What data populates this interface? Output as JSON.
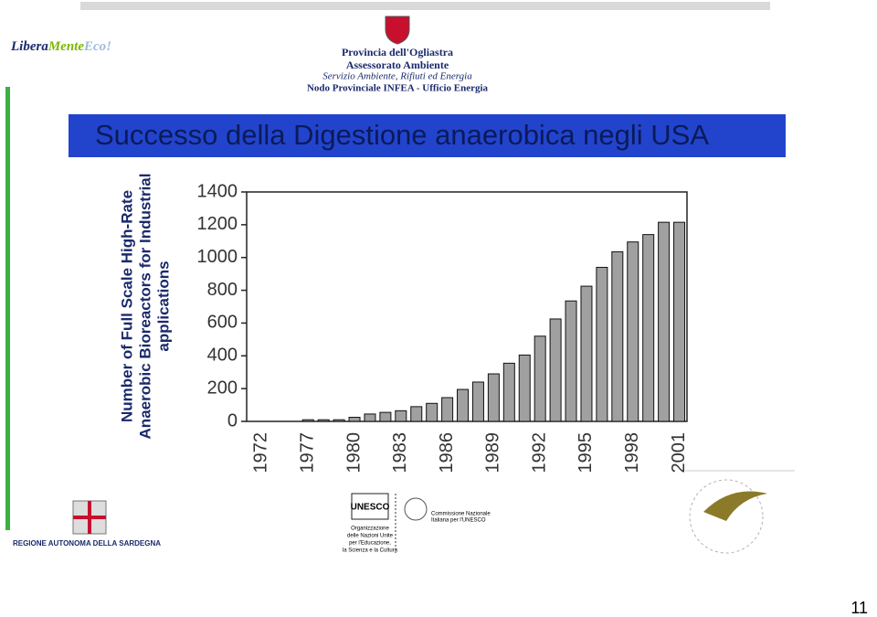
{
  "header": {
    "brand_a": "Libera",
    "brand_b": "Mente",
    "brand_c": "Eco!",
    "line1": "Provincia dell'Ogliastra",
    "line2": "Assessorato Ambiente",
    "line3": "Servizio Ambiente, Rifiuti ed Energia",
    "line4": "Nodo Provinciale INFEA - Ufficio Energia"
  },
  "footer": {
    "region": "REGIONE AUTONOMA DELLA SARDEGNA",
    "unesco": "UNESCO",
    "unesco_desc": [
      "Organizzazione",
      "delle Nazioni Unite",
      "per l'Educazione,",
      "la Scienza e la Cultura"
    ],
    "commission": [
      "Commissione Nazionale",
      "Italiana per l'UNESCO"
    ],
    "page": "11"
  },
  "chart_data": {
    "type": "bar",
    "title": "Successo della Digestione anaerobica negli USA",
    "y_label": [
      "Number of  Full Scale High-Rate",
      "Anaerobic Bioreactors for Industrial",
      "applications"
    ],
    "categories": [
      "1972",
      null,
      null,
      "1977",
      null,
      null,
      "1980",
      null,
      null,
      "1983",
      null,
      null,
      "1986",
      null,
      null,
      "1989",
      null,
      null,
      "1992",
      null,
      null,
      "1995",
      null,
      null,
      "1998",
      null,
      null,
      "2001"
    ],
    "values": [
      0,
      0,
      0,
      10,
      10,
      10,
      25,
      45,
      55,
      65,
      90,
      110,
      145,
      195,
      240,
      290,
      355,
      405,
      520,
      625,
      735,
      825,
      940,
      1035,
      1095,
      1140,
      1215,
      1215
    ],
    "color": "#a0a0a0",
    "ylim": [
      0,
      1400
    ],
    "yticks": [
      0,
      200,
      400,
      600,
      800,
      1000,
      1200,
      1400
    ]
  }
}
